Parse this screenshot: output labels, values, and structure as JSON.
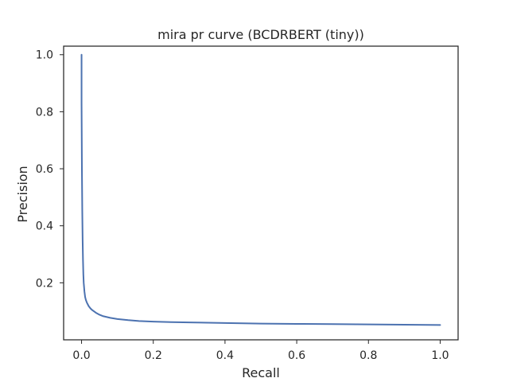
{
  "chart_data": {
    "type": "line",
    "title": "mira pr curve (BCDRBERT (tiny))",
    "xlabel": "Recall",
    "ylabel": "Precision",
    "xlim": [
      -0.05,
      1.05
    ],
    "ylim": [
      0.0,
      1.03
    ],
    "xticks": [
      "0.0",
      "0.2",
      "0.4",
      "0.6",
      "0.8",
      "1.0"
    ],
    "yticks": [
      "0.2",
      "0.4",
      "0.6",
      "0.8",
      "1.0"
    ],
    "grid": false,
    "legend": "none",
    "series_color": "#4c72b0",
    "series": [
      {
        "x": [
          0.0,
          0.0,
          0.001,
          0.002,
          0.003,
          0.004,
          0.005,
          0.006,
          0.008,
          0.01,
          0.012,
          0.015,
          0.02,
          0.025,
          0.03,
          0.04,
          0.05,
          0.06,
          0.08,
          0.1,
          0.13,
          0.16,
          0.2,
          0.25,
          0.3,
          0.4,
          0.5,
          0.6,
          0.7,
          0.8,
          0.9,
          1.0
        ],
        "y": [
          1.0,
          0.83,
          0.6,
          0.45,
          0.35,
          0.28,
          0.23,
          0.2,
          0.17,
          0.15,
          0.14,
          0.13,
          0.118,
          0.11,
          0.104,
          0.095,
          0.088,
          0.083,
          0.077,
          0.073,
          0.069,
          0.066,
          0.064,
          0.062,
          0.061,
          0.059,
          0.057,
          0.056,
          0.055,
          0.054,
          0.053,
          0.052
        ]
      }
    ]
  }
}
